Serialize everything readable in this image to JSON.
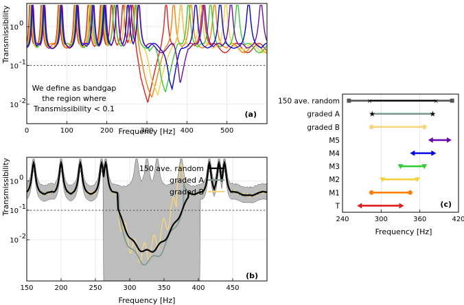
{
  "chart_data": [
    {
      "panel": "(a)",
      "type": "line",
      "xlabel": "Frequency [Hz]",
      "ylabel": "Transmissibility",
      "xlim": [
        0,
        600
      ],
      "ylim_log10": [
        -2.5,
        0.6
      ],
      "x_ticks": [
        0,
        100,
        200,
        300,
        400,
        500
      ],
      "y_ticks": [
        {
          "label": "10",
          "exp": "0",
          "log": 0
        },
        {
          "label": "10",
          "exp": "-1",
          "log": -1
        },
        {
          "label": "10",
          "exp": "-2",
          "log": -2
        }
      ],
      "threshold": 0.1,
      "annotation": [
        "We define as bandgap",
        "the region where",
        "Transmissibility < 0.1"
      ],
      "colors": [
        "#e41a1c",
        "#ff7f00",
        "#f4d03f",
        "#33cc33",
        "#0000ee",
        "#6a0dad"
      ],
      "bandgaps": [
        {
          "from": 275,
          "to": 330,
          "min": 0.009
        },
        {
          "from": 282,
          "to": 343,
          "min": 0.012
        },
        {
          "from": 300,
          "to": 355,
          "min": 0.014
        },
        {
          "from": 325,
          "to": 368,
          "min": 0.018
        },
        {
          "from": 346,
          "to": 380,
          "min": 0.023
        },
        {
          "from": 372,
          "to": 395,
          "min": 0.035
        }
      ]
    },
    {
      "panel": "(b)",
      "type": "line",
      "xlabel": "Frequency [Hz]",
      "ylabel": "Transmissibility",
      "xlim": [
        150,
        500
      ],
      "ylim_log10": [
        -3.4,
        0.8
      ],
      "x_ticks": [
        150,
        200,
        250,
        300,
        350,
        400,
        450
      ],
      "y_ticks": [
        {
          "label": "10",
          "exp": "0",
          "log": 0
        },
        {
          "label": "10",
          "exp": "-1",
          "log": -1
        },
        {
          "label": "10",
          "exp": "-2",
          "log": -2
        }
      ],
      "threshold": 0.1,
      "legend": [
        "150 ave. random",
        "graded A",
        "graded B"
      ],
      "colors": {
        "random": "#000000",
        "gradedA": "#7f9a8e",
        "gradedB": "#f7d57a",
        "band": "#bdbdbd"
      },
      "peaks": [
        160,
        200,
        228,
        259,
        265,
        310,
        325,
        340,
        375,
        416,
        430,
        438
      ]
    },
    {
      "panel": "(c)",
      "type": "range",
      "xlabel": "Frequency [Hz]",
      "xlim": [
        240,
        420
      ],
      "x_ticks": [
        240,
        300,
        360,
        420
      ],
      "categories": [
        "150 ave. random",
        "graded A",
        "graded B",
        "M5",
        "M4",
        "M3",
        "M2",
        "M1",
        "T"
      ],
      "series": [
        {
          "name": "150 ave. random",
          "from": 250,
          "to": 410,
          "mean_from": 282,
          "mean_to": 385,
          "color": "#555555"
        },
        {
          "name": "graded A",
          "from": 286,
          "to": 380,
          "color": "#7f9a8e"
        },
        {
          "name": "graded B",
          "from": 285,
          "to": 367,
          "color": "#f7d57a"
        },
        {
          "name": "M5",
          "from": 375,
          "to": 404,
          "color": "#6a0dad"
        },
        {
          "name": "M4",
          "from": 350,
          "to": 380,
          "color": "#0000ee"
        },
        {
          "name": "M3",
          "from": 330,
          "to": 367,
          "color": "#33cc33"
        },
        {
          "name": "M2",
          "from": 302,
          "to": 356,
          "color": "#f4d03f"
        },
        {
          "name": "M1",
          "from": 285,
          "to": 345,
          "color": "#ff7f00"
        },
        {
          "name": "T",
          "from": 268,
          "to": 330,
          "color": "#e41a1c"
        }
      ]
    }
  ]
}
